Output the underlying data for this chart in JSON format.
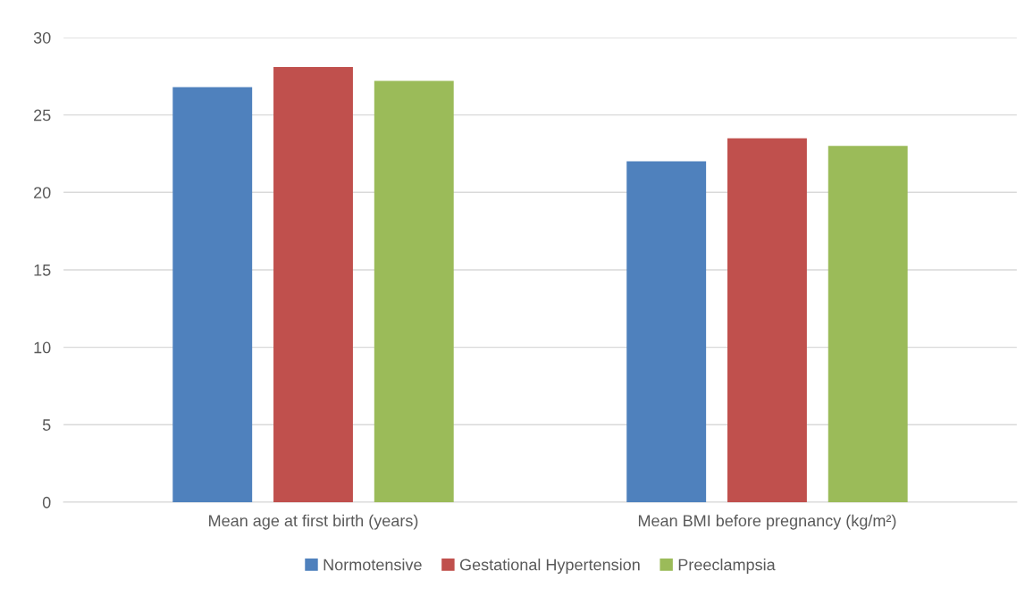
{
  "chart_data": {
    "type": "bar",
    "categories": [
      "Mean age at first birth (years)",
      "Mean BMI before pregnancy (kg/m²)"
    ],
    "series": [
      {
        "name": "Normotensive",
        "color": "#4f81bd",
        "values": [
          26.8,
          22.0
        ]
      },
      {
        "name": "Gestational Hypertension",
        "color": "#c0504d",
        "values": [
          28.1,
          23.5
        ]
      },
      {
        "name": "Preeclampsia",
        "color": "#9bbb59",
        "values": [
          27.2,
          23.0
        ]
      }
    ],
    "ylim": [
      0,
      30
    ],
    "yticks": [
      0,
      5,
      10,
      15,
      20,
      25,
      30
    ],
    "grid": "y",
    "legend": "bottom"
  }
}
